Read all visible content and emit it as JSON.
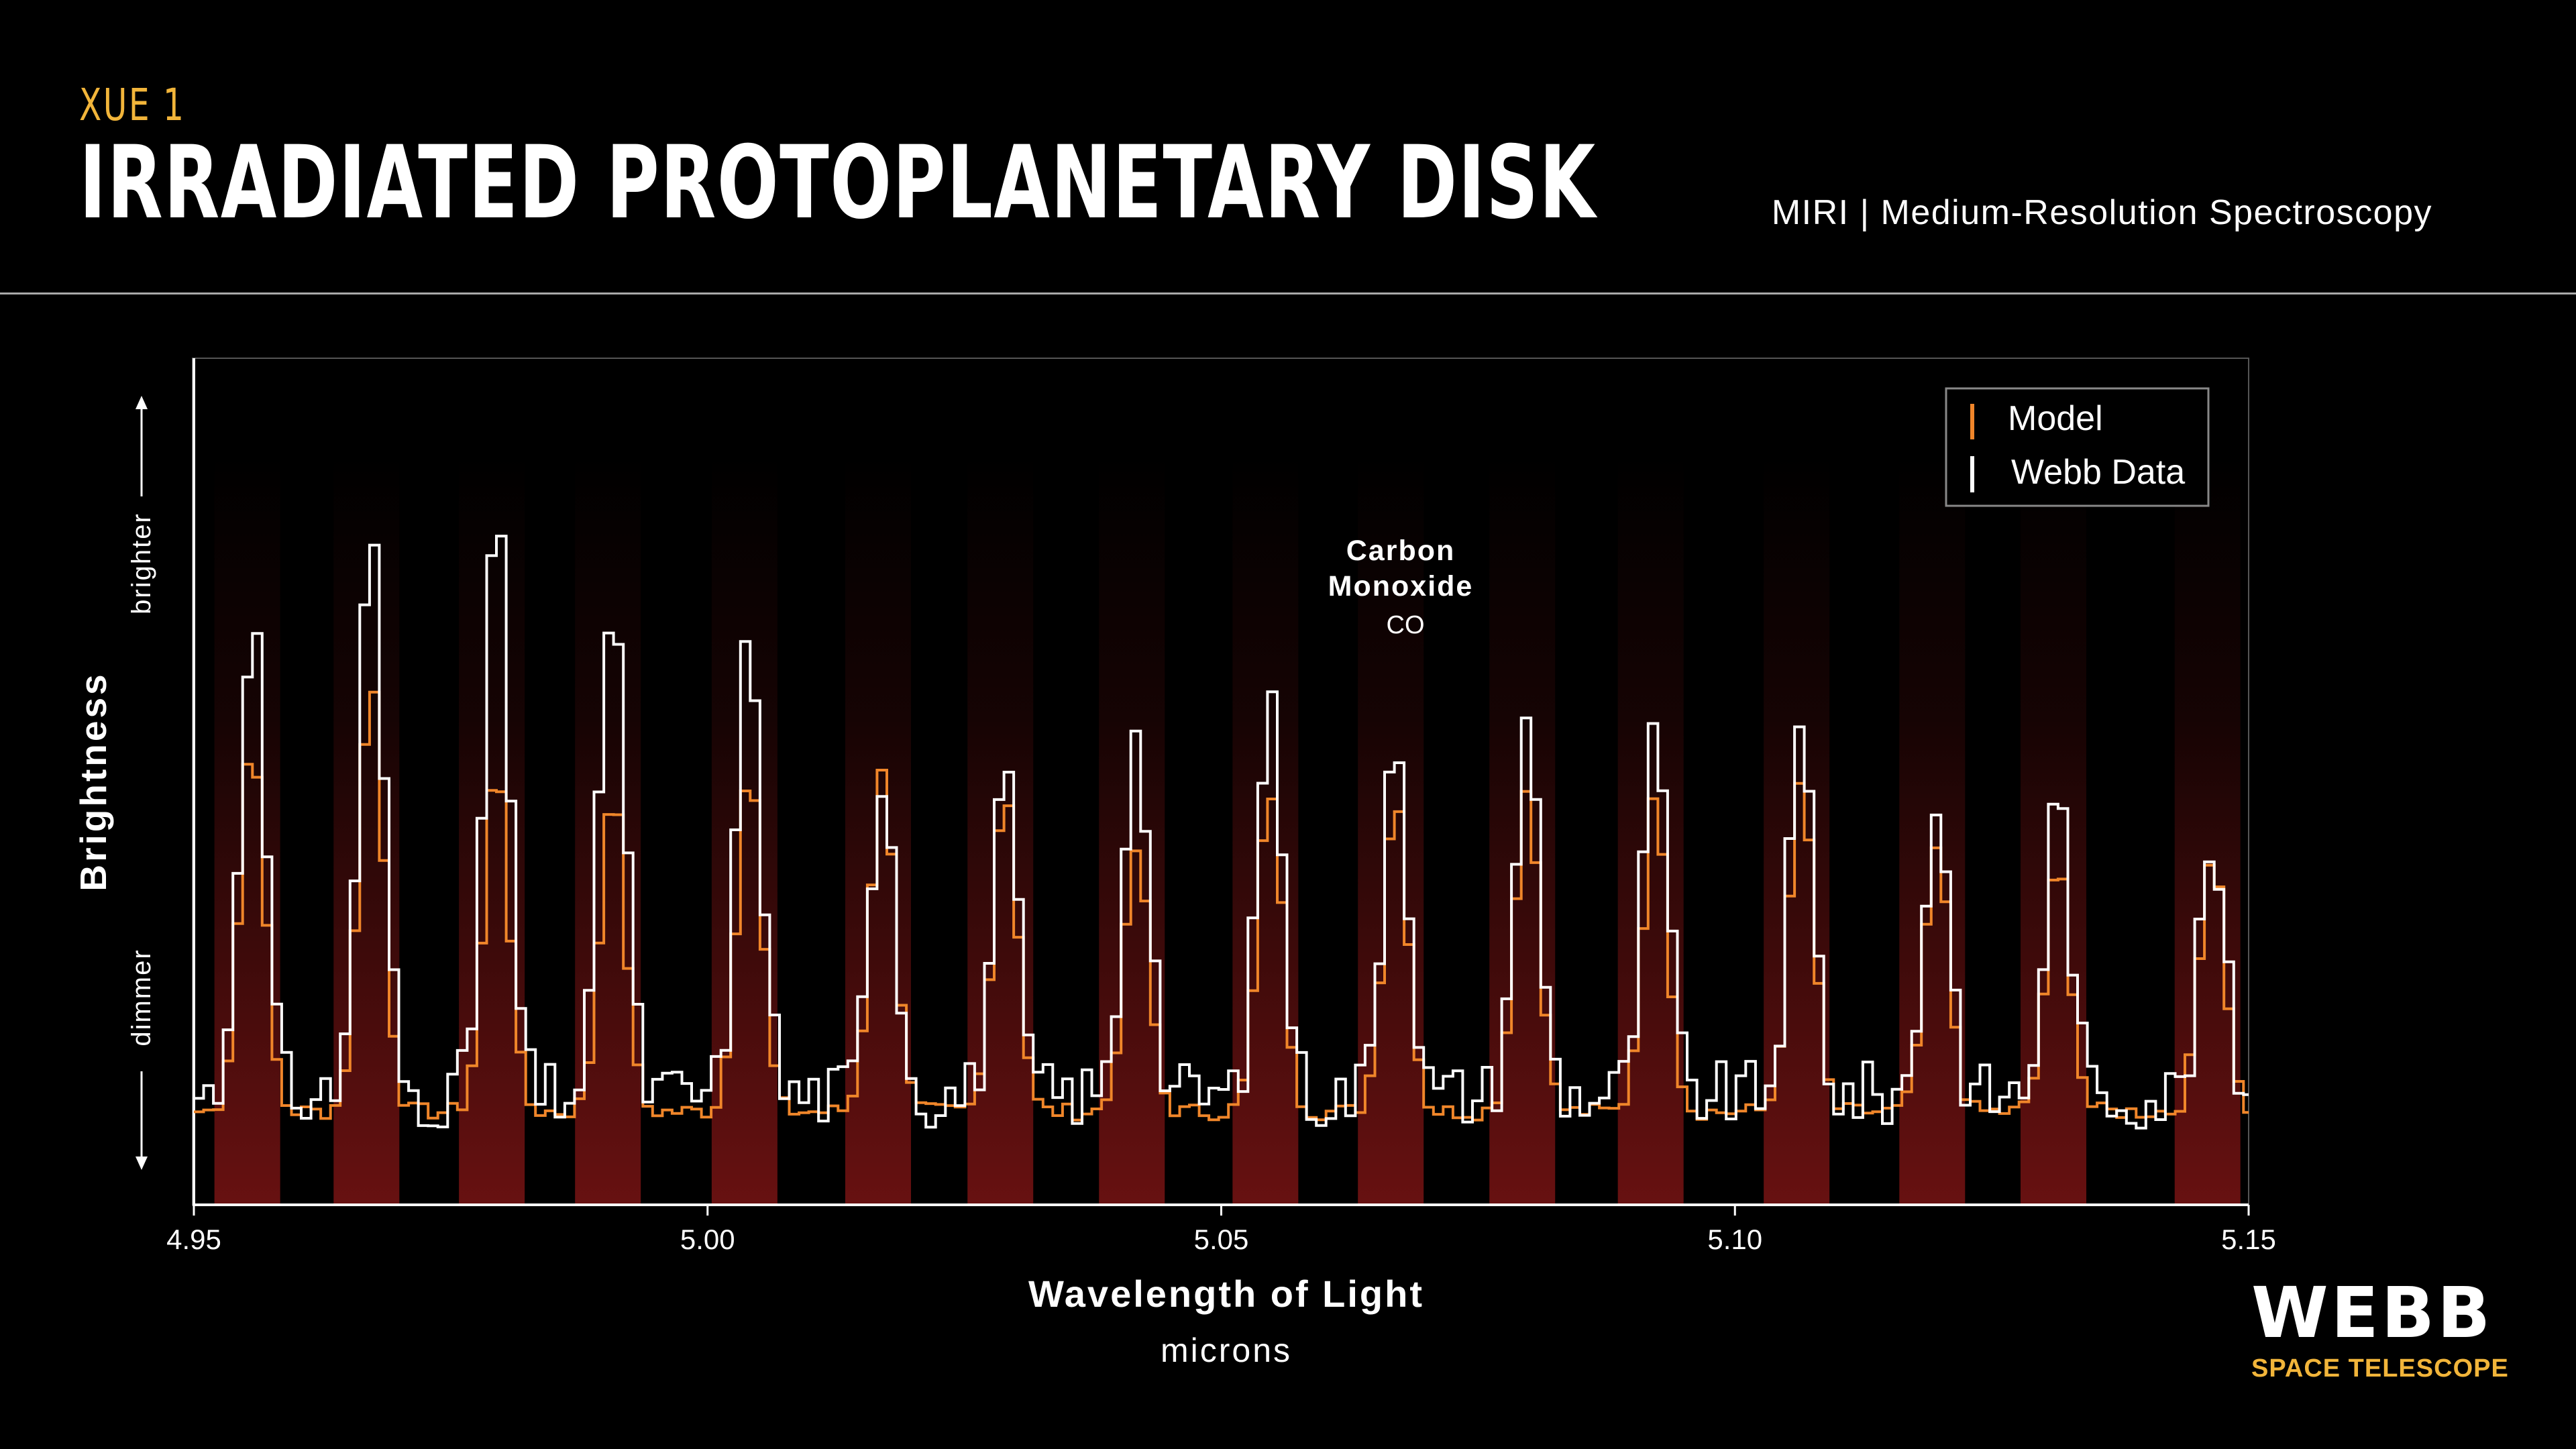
{
  "header": {
    "subtitle": "XUE 1",
    "title": "IRRADIATED PROTOPLANETARY DISK",
    "instrument": "MIRI | Medium-Resolution Spectroscopy"
  },
  "logo": {
    "word": "WEBB",
    "sub": "SPACE TELESCOPE"
  },
  "colors": {
    "model": "#f0862a",
    "data": "#ffffff",
    "band": "#7a1414",
    "accent": "#f2b53a",
    "background": "#000000"
  },
  "chart_data": {
    "type": "line",
    "xlabel": "Wavelength of Light",
    "xunit": "microns",
    "ylabel": "Brightness",
    "y_bright_label": "brighter",
    "y_dim_label": "dimmer",
    "xlim": [
      4.95,
      5.15
    ],
    "ylim": [
      0,
      1
    ],
    "xticks": [
      "4.95",
      "5.00",
      "5.05",
      "5.10",
      "5.15"
    ],
    "xtick_values": [
      4.95,
      5.0,
      5.05,
      5.1,
      5.15
    ],
    "legend": {
      "position": "top-right",
      "entries": [
        "Model",
        "Webb Data"
      ]
    },
    "annotation": {
      "name_line1": "Carbon",
      "name_line2": "Monoxide",
      "formula": "CO"
    },
    "line_wavelengths": [
      4.9552,
      4.9668,
      4.979,
      4.9903,
      5.0036,
      5.0166,
      5.0285,
      5.0413,
      5.0543,
      5.0665,
      5.0793,
      5.0918,
      5.106,
      5.1192,
      5.131,
      5.146
    ],
    "series": [
      {
        "name": "Model",
        "line_peaks": [
          0.55,
          0.62,
          0.52,
          0.49,
          0.52,
          0.51,
          0.49,
          0.42,
          0.49,
          0.48,
          0.49,
          0.48,
          0.5,
          0.42,
          0.4,
          0.42
        ]
      },
      {
        "name": "Webb Data",
        "line_peaks": [
          0.7,
          0.78,
          0.81,
          0.73,
          0.67,
          0.52,
          0.49,
          0.58,
          0.6,
          0.57,
          0.56,
          0.55,
          0.55,
          0.48,
          0.48,
          0.42
        ]
      }
    ]
  }
}
